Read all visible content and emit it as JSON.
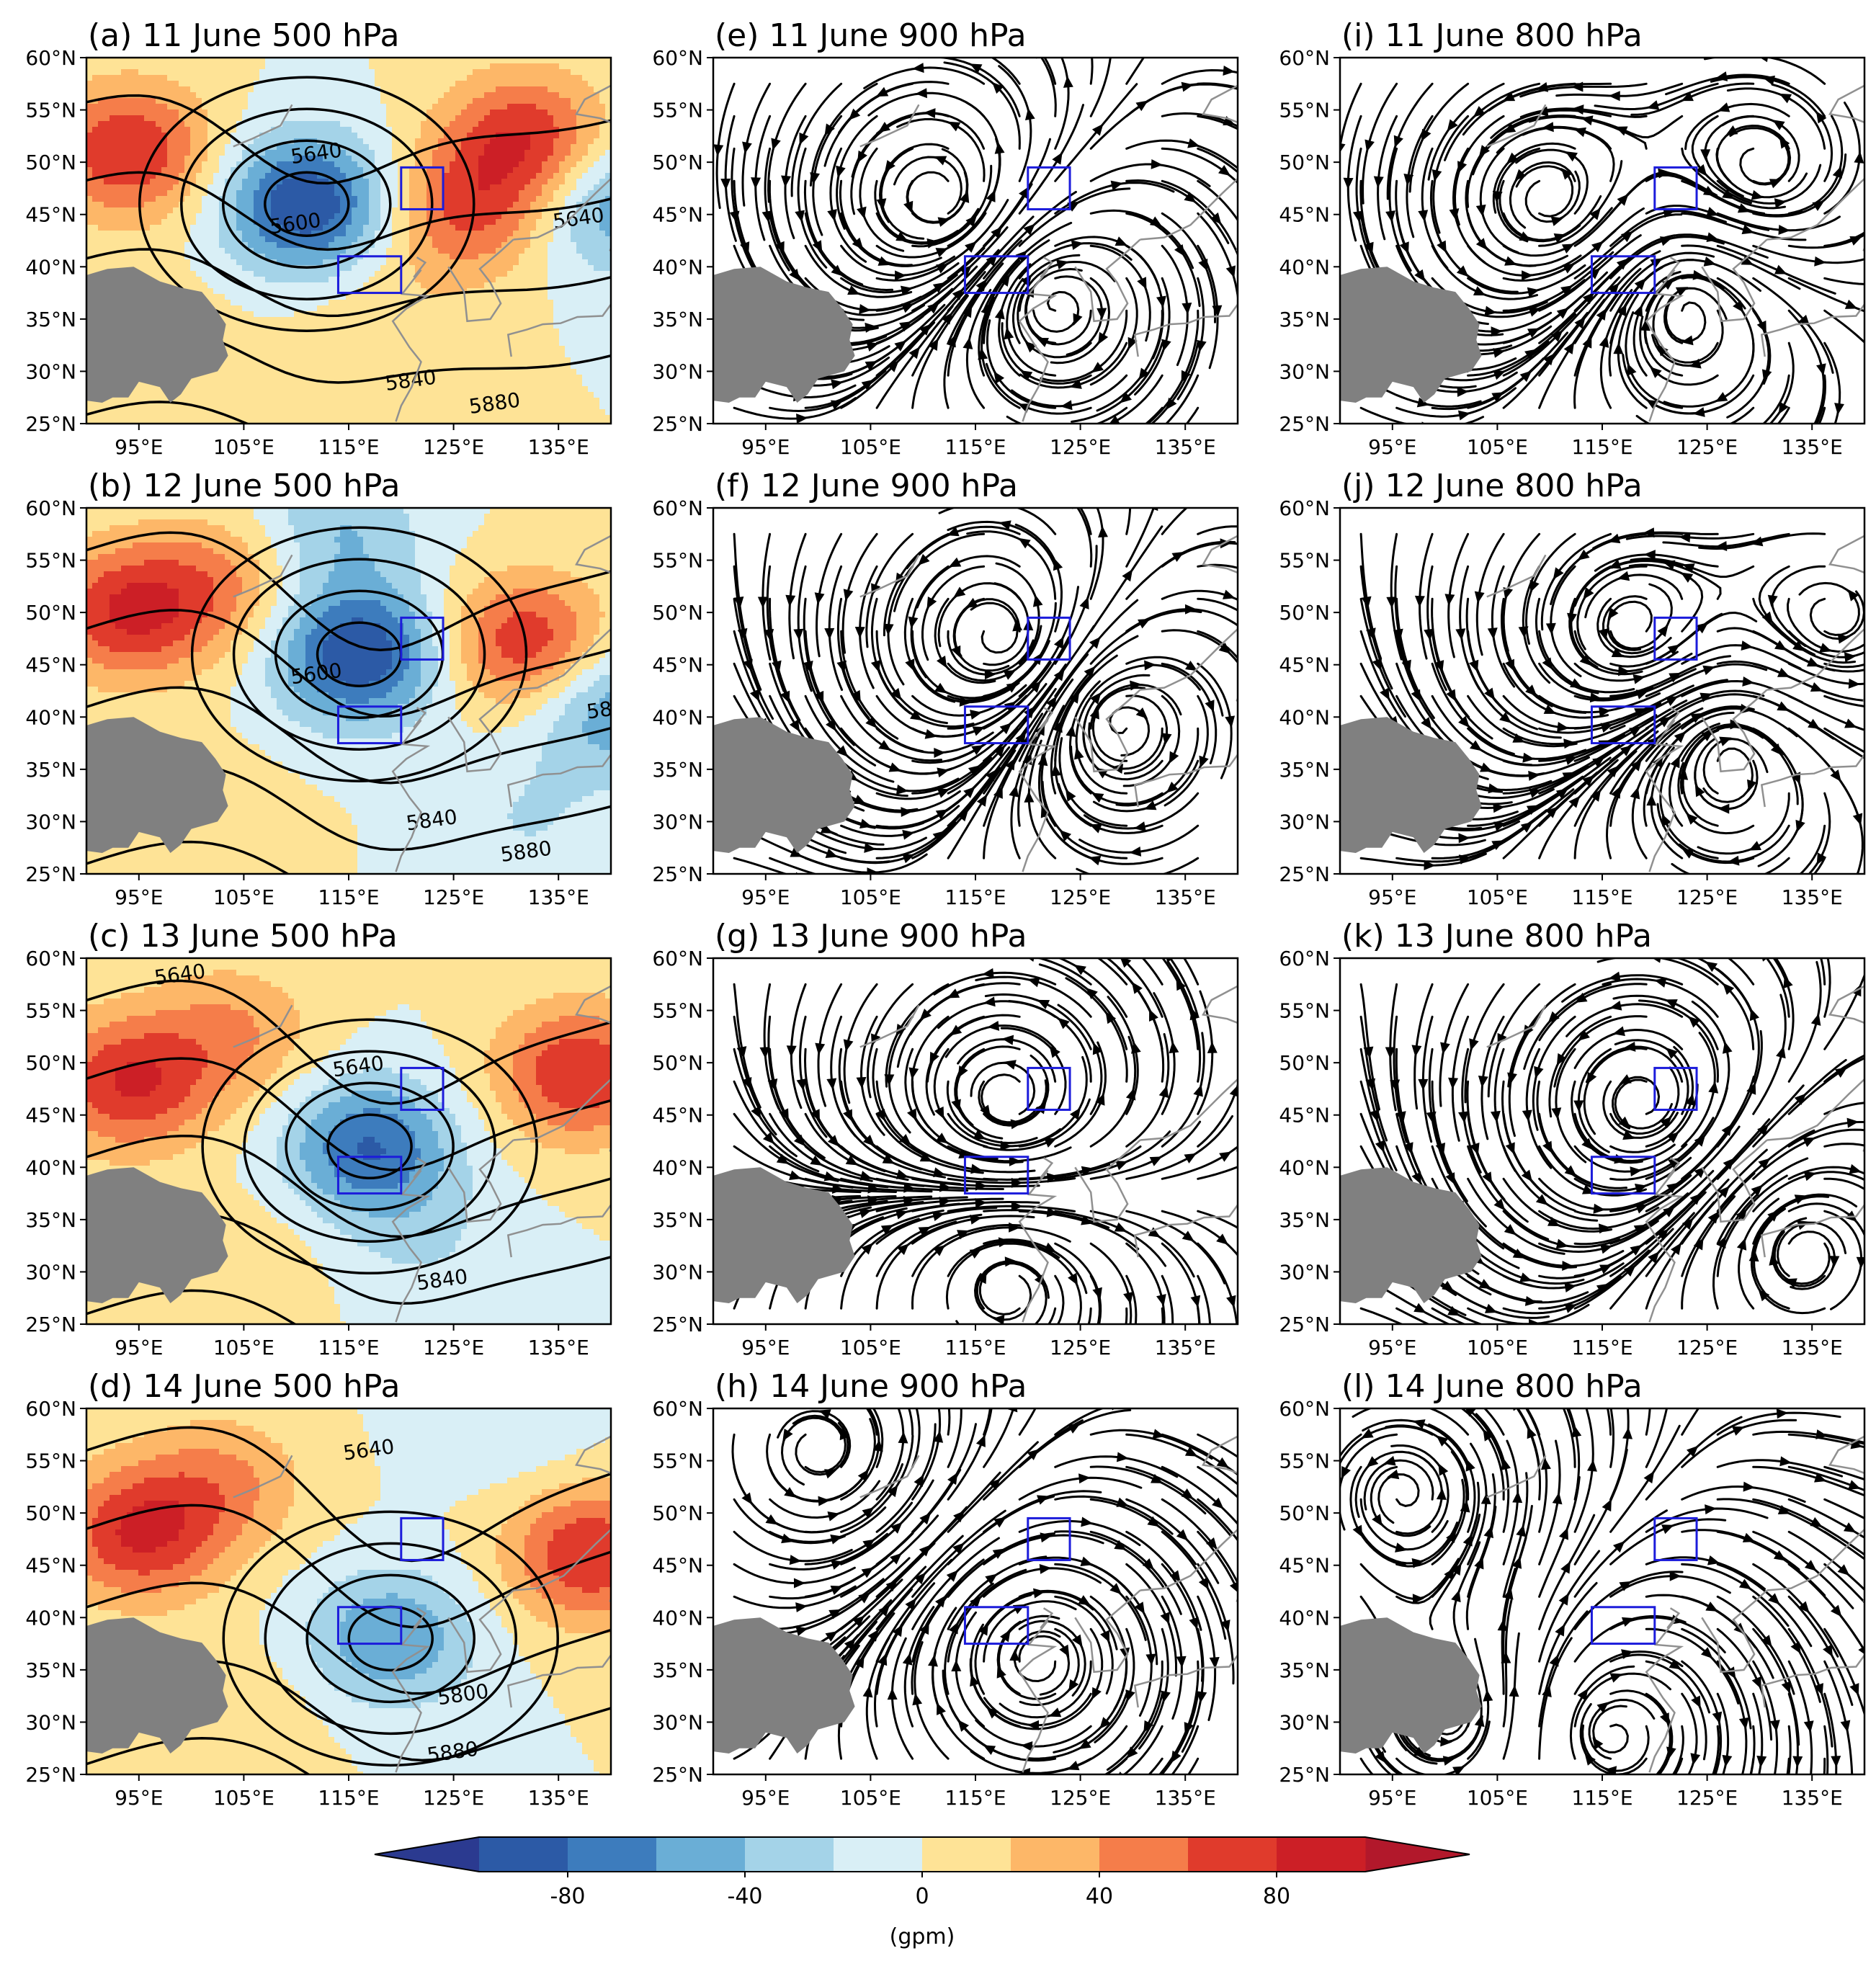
{
  "panels": [
    {
      "id": "a",
      "title": "(a) 11 June 500 hPa",
      "kind": "height",
      "anomaly_centres": [
        {
          "lon": 94,
          "lat": 51,
          "value": 80
        },
        {
          "lon": 132,
          "lat": 52,
          "value": 80
        },
        {
          "lon": 126,
          "lat": 45,
          "value": 60
        },
        {
          "lon": 111,
          "lat": 46,
          "value": -100
        },
        {
          "lon": 140,
          "lat": 46,
          "value": -60
        },
        {
          "lon": 118,
          "lat": 33,
          "value": 20
        },
        {
          "lon": 96,
          "lat": 32,
          "value": 20
        }
      ],
      "contour_labels": [
        {
          "text": "5640",
          "lon": 112,
          "lat": 50.2
        },
        {
          "text": "5600",
          "lon": 110,
          "lat": 43.5
        },
        {
          "text": "5640",
          "lon": 137,
          "lat": 44
        },
        {
          "text": "5840",
          "lon": 121,
          "lat": 28.5
        },
        {
          "text": "5880",
          "lon": 129,
          "lat": 26.3
        }
      ]
    },
    {
      "id": "b",
      "title": "(b) 12 June 500 hPa",
      "kind": "height",
      "anomaly_centres": [
        {
          "lon": 94,
          "lat": 50,
          "value": 80
        },
        {
          "lon": 132,
          "lat": 47,
          "value": 80
        },
        {
          "lon": 103,
          "lat": 53,
          "value": 40
        },
        {
          "lon": 116,
          "lat": 46,
          "value": -100
        },
        {
          "lon": 114,
          "lat": 58,
          "value": -40
        },
        {
          "lon": 140,
          "lat": 41,
          "value": -60
        },
        {
          "lon": 132,
          "lat": 30,
          "value": -20
        },
        {
          "lon": 100,
          "lat": 30,
          "value": 20
        }
      ],
      "contour_labels": [
        {
          "text": "5600",
          "lon": 112,
          "lat": 43.5
        },
        {
          "text": "5840",
          "lon": 123,
          "lat": 29.5
        },
        {
          "text": "5880",
          "lon": 132,
          "lat": 26.5
        },
        {
          "text": "58",
          "lon": 139,
          "lat": 40
        }
      ]
    },
    {
      "id": "c",
      "title": "(c) 13 June 500 hPa",
      "kind": "height",
      "anomaly_centres": [
        {
          "lon": 94,
          "lat": 48,
          "value": 80
        },
        {
          "lon": 137,
          "lat": 49,
          "value": 80
        },
        {
          "lon": 104,
          "lat": 53,
          "value": 40
        },
        {
          "lon": 117,
          "lat": 42,
          "value": -80
        },
        {
          "lon": 122,
          "lat": 33,
          "value": -20
        },
        {
          "lon": 104,
          "lat": 30,
          "value": 20
        }
      ],
      "contour_labels": [
        {
          "text": "5640",
          "lon": 99,
          "lat": 57.8
        },
        {
          "text": "5640",
          "lon": 116,
          "lat": 49
        },
        {
          "text": "5840",
          "lon": 124,
          "lat": 28.6
        }
      ]
    },
    {
      "id": "d",
      "title": "(d) 14 June 500 hPa",
      "kind": "height",
      "anomaly_centres": [
        {
          "lon": 95,
          "lat": 48,
          "value": 80
        },
        {
          "lon": 138,
          "lat": 46,
          "value": 80
        },
        {
          "lon": 103,
          "lat": 53,
          "value": 40
        },
        {
          "lon": 119,
          "lat": 38,
          "value": -60
        },
        {
          "lon": 130,
          "lat": 59,
          "value": -20
        },
        {
          "lon": 104,
          "lat": 30,
          "value": 20
        }
      ],
      "contour_labels": [
        {
          "text": "5640",
          "lon": 117,
          "lat": 55.4
        },
        {
          "text": "5800",
          "lon": 126,
          "lat": 32
        },
        {
          "text": "5880",
          "lon": 125,
          "lat": 26.5
        }
      ]
    },
    {
      "id": "e",
      "title": "(e) 11 June 900 hPa",
      "kind": "stream",
      "vortices": [
        {
          "lon": 112,
          "lat": 46
        },
        {
          "lon": 122,
          "lat": 37
        }
      ]
    },
    {
      "id": "f",
      "title": "(f) 12 June 900 hPa",
      "kind": "stream",
      "vortices": [
        {
          "lon": 118,
          "lat": 47
        },
        {
          "lon": 128,
          "lat": 40
        }
      ]
    },
    {
      "id": "g",
      "title": "(g) 13 June 900 hPa",
      "kind": "stream",
      "vortices": [
        {
          "lon": 118,
          "lat": 46
        },
        {
          "lon": 118,
          "lat": 29
        }
      ]
    },
    {
      "id": "h",
      "title": "(h) 14 June 900 hPa",
      "kind": "stream",
      "vortices": [
        {
          "lon": 100,
          "lat": 56
        },
        {
          "lon": 121,
          "lat": 36
        }
      ]
    },
    {
      "id": "i",
      "title": "(i) 11 June 800 hPa",
      "kind": "stream",
      "vortices": [
        {
          "lon": 110,
          "lat": 46
        },
        {
          "lon": 123,
          "lat": 37
        },
        {
          "lon": 130,
          "lat": 49
        }
      ]
    },
    {
      "id": "j",
      "title": "(j) 12 June 800 hPa",
      "kind": "stream",
      "vortices": [
        {
          "lon": 118,
          "lat": 48
        },
        {
          "lon": 127,
          "lat": 37
        },
        {
          "lon": 137,
          "lat": 49
        }
      ]
    },
    {
      "id": "k",
      "title": "(k) 13 June 800 hPa",
      "kind": "stream",
      "vortices": [
        {
          "lon": 119,
          "lat": 46
        },
        {
          "lon": 134,
          "lat": 32
        }
      ]
    },
    {
      "id": "l",
      "title": "(l) 14 June 800 hPa",
      "kind": "stream",
      "vortices": [
        {
          "lon": 101,
          "lat": 30
        },
        {
          "lon": 115,
          "lat": 29
        },
        {
          "lon": 96,
          "lat": 52
        }
      ]
    }
  ],
  "axes": {
    "lon_range": [
      90,
      140
    ],
    "lat_range": [
      25,
      60
    ],
    "x_ticks": [
      {
        "v": 95,
        "t": "95°E"
      },
      {
        "v": 105,
        "t": "105°E"
      },
      {
        "v": 115,
        "t": "115°E"
      },
      {
        "v": 125,
        "t": "125°E"
      },
      {
        "v": 135,
        "t": "135°E"
      }
    ],
    "y_ticks": [
      {
        "v": 60,
        "t": "60°N"
      },
      {
        "v": 55,
        "t": "55°N"
      },
      {
        "v": 50,
        "t": "50°N"
      },
      {
        "v": 45,
        "t": "45°N"
      },
      {
        "v": 40,
        "t": "40°N"
      },
      {
        "v": 35,
        "t": "35°N"
      },
      {
        "v": 30,
        "t": "30°N"
      },
      {
        "v": 25,
        "t": "25°N"
      }
    ]
  },
  "boxes": [
    {
      "lon": [
        114,
        120
      ],
      "lat": [
        37.5,
        41
      ]
    },
    {
      "lon": [
        120,
        124
      ],
      "lat": [
        45.5,
        49.5
      ]
    }
  ],
  "colorbar": {
    "label": "(gpm)",
    "ticks": [
      {
        "v": -80,
        "t": "-80"
      },
      {
        "v": -40,
        "t": "-40"
      },
      {
        "v": 0,
        "t": "0"
      },
      {
        "v": 40,
        "t": "40"
      },
      {
        "v": 80,
        "t": "80"
      }
    ],
    "levels": [
      -100,
      -80,
      -60,
      -40,
      -20,
      0,
      20,
      40,
      60,
      80,
      100
    ],
    "colors": [
      "#2c5aa6",
      "#3d7cbd",
      "#6aaed6",
      "#a4d3e8",
      "#d9eff6",
      "#fee396",
      "#fdb768",
      "#f57d4a",
      "#e03b2c",
      "#cc1f26"
    ],
    "under": "#2b3a90",
    "over": "#b2182b"
  },
  "colors": {
    "terrain": "#808080",
    "box": "#1c1cdb",
    "coast": "#909090",
    "contour": "#000000"
  }
}
